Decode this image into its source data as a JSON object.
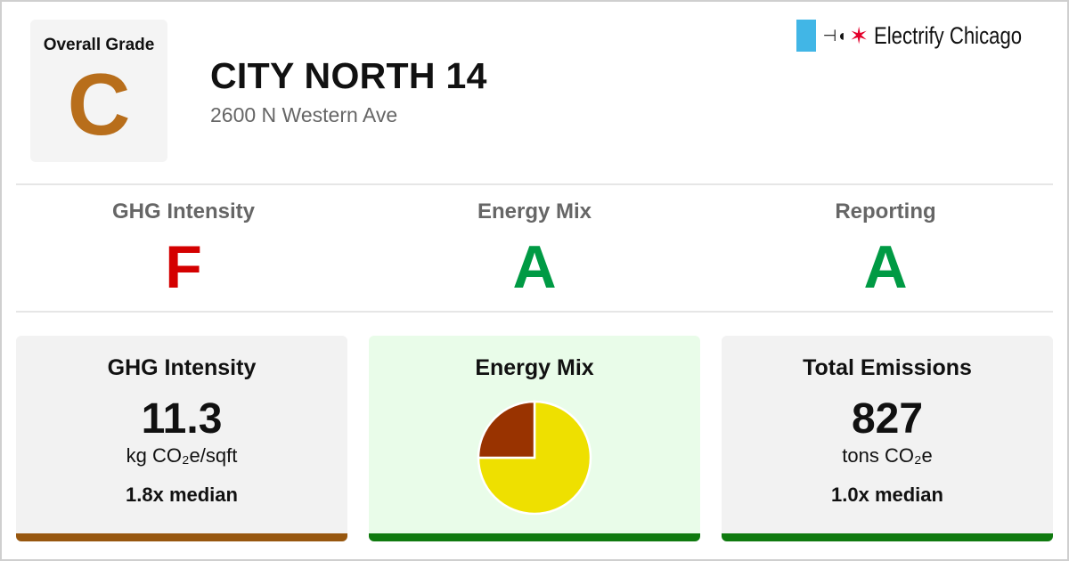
{
  "overall": {
    "label": "Overall Grade",
    "grade": "C",
    "color": "#b86e1b"
  },
  "building": {
    "name": "CITY NORTH 14",
    "address": "2600 N Western Ave"
  },
  "brand": {
    "name": "Electrify Chicago",
    "icons": [
      "flag-stripe-icon",
      "plug-icon",
      "chicago-star-icon"
    ],
    "stripe_color": "#41b6e6",
    "star_color": "#e4002b"
  },
  "grades": [
    {
      "label": "GHG Intensity",
      "grade": "F",
      "color": "#d40000"
    },
    {
      "label": "Energy Mix",
      "grade": "A",
      "color": "#009a44"
    },
    {
      "label": "Reporting",
      "grade": "A",
      "color": "#009a44"
    }
  ],
  "cards": {
    "ghg": {
      "title": "GHG Intensity",
      "value": "11.3",
      "unit": "kg CO₂e/sqft",
      "median": "1.8x median",
      "bar_color": "#97570f"
    },
    "mix": {
      "title": "Energy Mix",
      "bar_color": "#0f7a0f"
    },
    "emissions": {
      "title": "Total Emissions",
      "value": "827",
      "unit": "tons CO₂e",
      "median": "1.0x median",
      "bar_color": "#0f7a0f"
    }
  },
  "chart_data": {
    "type": "pie",
    "slices": [
      {
        "value": 75,
        "color": "#eee000"
      },
      {
        "value": 25,
        "color": "#993300"
      }
    ]
  }
}
